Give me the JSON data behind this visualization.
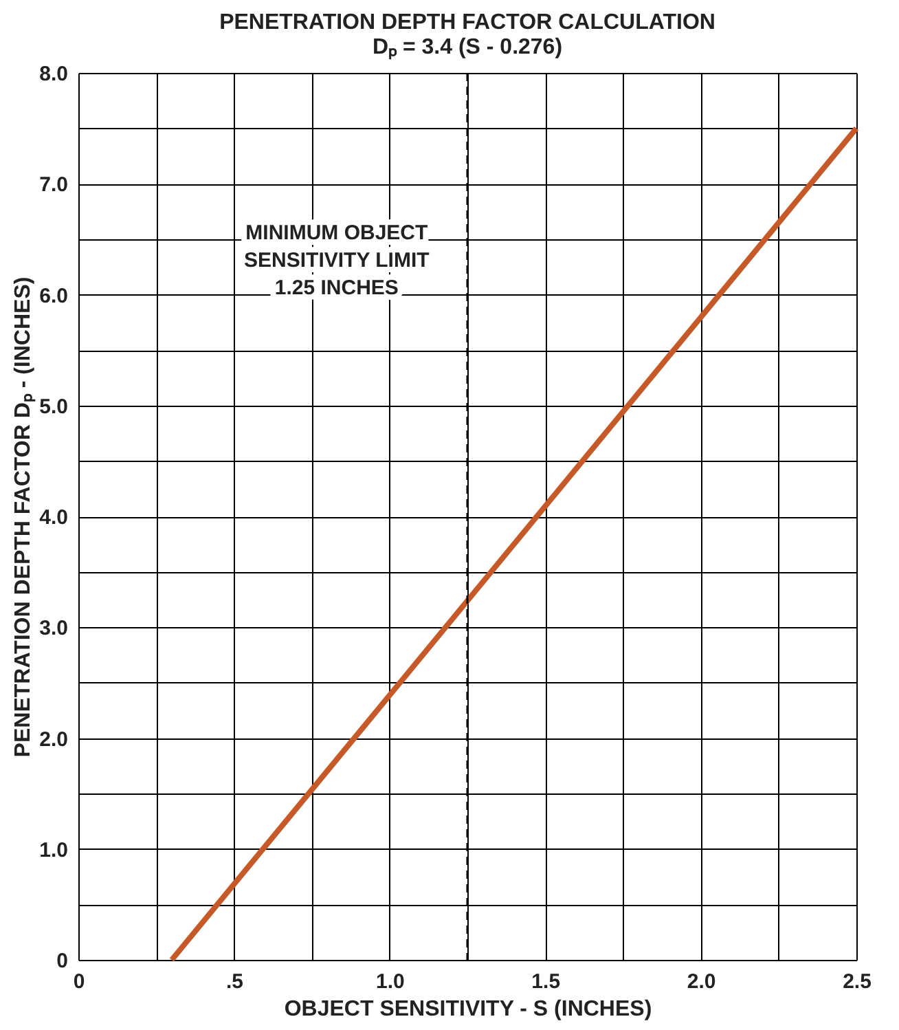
{
  "chart_data": {
    "type": "line",
    "title": "PENETRATION DEPTH FACTOR CALCULATION",
    "subtitle": "Dₚ = 3.4 (S - 0.276)",
    "xlabel": "OBJECT SENSITIVITY - S (INCHES)",
    "ylabel": "PENETRATION DEPTH FACTOR Dₚ - (INCHES)",
    "x": [
      0.3,
      2.5
    ],
    "series": [
      {
        "color": "#c55a28",
        "values": [
          0,
          7.5
        ]
      }
    ],
    "xlim": [
      0,
      2.5
    ],
    "xticks": [
      0,
      {
        "value": 0.25,
        "label": null
      },
      {
        "value": 0.5,
        "label": ".5"
      },
      {
        "value": 0.75,
        "label": null
      },
      {
        "value": 1.0,
        "label": "1.0"
      },
      {
        "value": 1.25,
        "label": null
      },
      {
        "value": 1.5,
        "label": "1.5"
      },
      {
        "value": 1.75,
        "label": null
      },
      {
        "value": 2.0,
        "label": "2.0"
      },
      {
        "value": 2.25,
        "label": null
      },
      {
        "value": 2.5,
        "label": "2.5"
      }
    ],
    "ylim": [
      0,
      8
    ],
    "yticks": [
      0,
      {
        "value": 0.5,
        "label": null
      },
      {
        "value": 1,
        "label": "1.0"
      },
      {
        "value": 1.5,
        "label": null
      },
      {
        "value": 2,
        "label": "2.0"
      },
      {
        "value": 2.5,
        "label": null
      },
      {
        "value": 3,
        "label": "3.0"
      },
      {
        "value": 3.5,
        "label": null
      },
      {
        "value": 4,
        "label": "4.0"
      },
      {
        "value": 4.5,
        "label": null
      },
      {
        "value": 5,
        "label": "5.0"
      },
      {
        "value": 5.5,
        "label": null
      },
      {
        "value": 6,
        "label": "6.0"
      },
      {
        "value": 6.5,
        "label": null
      },
      {
        "value": 7,
        "label": "7.0"
      },
      {
        "value": 7.5,
        "label": null
      },
      {
        "value": 8,
        "label": "8.0"
      }
    ],
    "ref_lines": [
      {
        "axis": "x",
        "value": 1.25,
        "label": "MINIMUM OBJECT\nSENSITIVITY LIMIT\n1.25 INCHES",
        "line_style": "dashed",
        "color": "#000000"
      }
    ],
    "grid": true,
    "marker": "none",
    "line_style": "solid"
  }
}
